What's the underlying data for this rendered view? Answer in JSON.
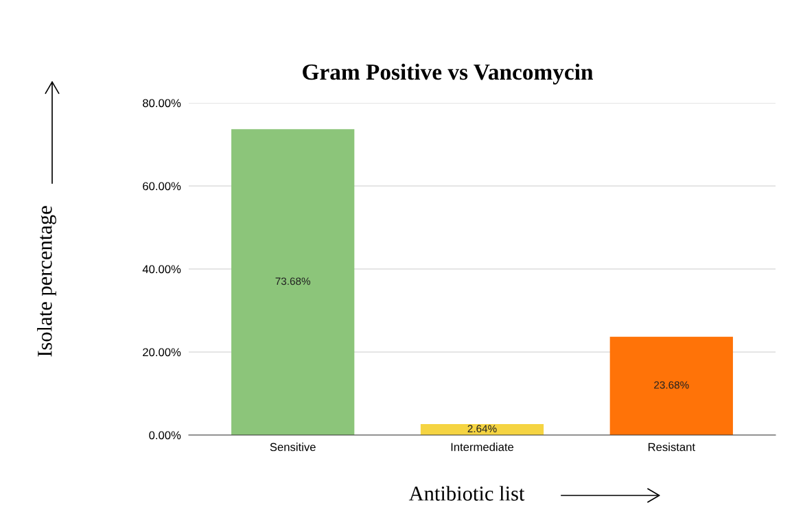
{
  "chart_data": {
    "type": "bar",
    "title": "Gram Positive vs Vancomycin",
    "xlabel": "Antibiotic list",
    "ylabel": "Isolate percentage",
    "categories": [
      "Sensitive",
      "Intermediate",
      "Resistant"
    ],
    "values": [
      73.68,
      2.64,
      23.68
    ],
    "colors": [
      "#8cc57a",
      "#f5d442",
      "#ff7308"
    ],
    "value_labels": [
      "73.68%",
      "2.64%",
      "23.68%"
    ],
    "ylim": [
      0,
      80
    ],
    "yticks": [
      {
        "value": 0,
        "label": "0.00%"
      },
      {
        "value": 20,
        "label": "20.00%"
      },
      {
        "value": 40,
        "label": "40.00%"
      },
      {
        "value": 60,
        "label": "60.00%"
      },
      {
        "value": 80,
        "label": "80.00%"
      }
    ],
    "grid": "y"
  }
}
